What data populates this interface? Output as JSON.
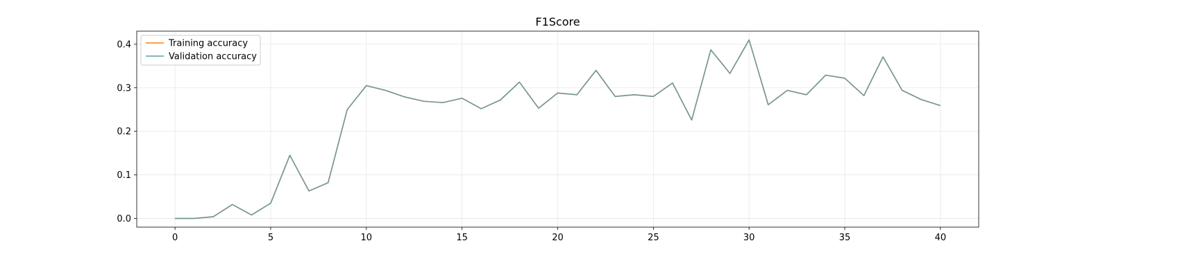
{
  "chart_data": {
    "type": "line",
    "title": "F1Score",
    "xlabel": "",
    "ylabel": "",
    "xlim": [
      -2,
      42
    ],
    "ylim": [
      -0.02,
      0.43
    ],
    "xticks": [
      0,
      5,
      10,
      15,
      20,
      25,
      30,
      35,
      40
    ],
    "yticks": [
      0.0,
      0.1,
      0.2,
      0.3,
      0.4
    ],
    "ytick_labels": [
      "0.0",
      "0.1",
      "0.2",
      "0.3",
      "0.4"
    ],
    "grid": true,
    "legend_position": "top-left",
    "x": [
      0,
      1,
      2,
      3,
      4,
      5,
      6,
      7,
      8,
      9,
      10,
      11,
      12,
      13,
      14,
      15,
      16,
      17,
      18,
      19,
      20,
      21,
      22,
      23,
      24,
      25,
      26,
      27,
      28,
      29,
      30,
      31,
      32,
      33,
      34,
      35,
      36,
      37,
      38,
      39,
      40
    ],
    "series": [
      {
        "name": "Training accuracy",
        "color": "#ff7f0e",
        "values": [
          0.0,
          0.0,
          0.004,
          0.032,
          0.008,
          0.035,
          0.145,
          0.063,
          0.082,
          0.25,
          0.305,
          0.294,
          0.279,
          0.269,
          0.266,
          0.276,
          0.252,
          0.272,
          0.313,
          0.253,
          0.288,
          0.284,
          0.34,
          0.28,
          0.284,
          0.28,
          0.311,
          0.226,
          0.387,
          0.333,
          0.41,
          0.261,
          0.294,
          0.284,
          0.329,
          0.322,
          0.282,
          0.371,
          0.294,
          0.273,
          0.259
        ]
      },
      {
        "name": "Validation accuracy",
        "color": "#5f9ea0",
        "values": [
          0.0,
          0.0,
          0.004,
          0.032,
          0.008,
          0.035,
          0.145,
          0.063,
          0.082,
          0.25,
          0.305,
          0.294,
          0.279,
          0.269,
          0.266,
          0.276,
          0.252,
          0.272,
          0.313,
          0.253,
          0.288,
          0.284,
          0.34,
          0.28,
          0.284,
          0.28,
          0.311,
          0.226,
          0.387,
          0.333,
          0.41,
          0.261,
          0.294,
          0.284,
          0.329,
          0.322,
          0.282,
          0.371,
          0.294,
          0.273,
          0.259
        ]
      }
    ]
  }
}
